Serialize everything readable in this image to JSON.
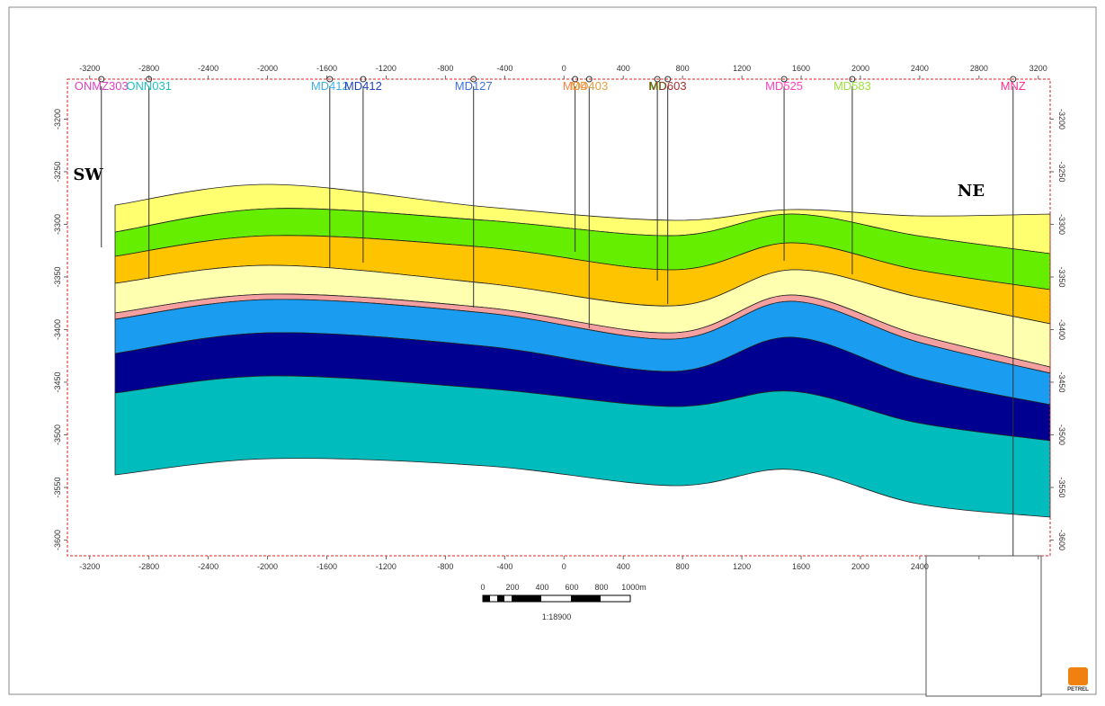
{
  "chart_data": {
    "type": "section",
    "xlim": [
      -3350,
      3280
    ],
    "xticks": [
      -3200,
      -2800,
      -2400,
      -2000,
      -1600,
      -1200,
      -800,
      -400,
      0,
      400,
      800,
      1200,
      1600,
      2000,
      2400,
      2800,
      3200
    ],
    "ylim": [
      -3615,
      -3162
    ],
    "yticks": [
      -3600,
      -3550,
      -3500,
      -3450,
      -3400,
      -3350,
      -3300,
      -3250,
      -3200
    ],
    "wells": [
      {
        "name": "ONMZ303",
        "x": -3121,
        "color": "#e040c0"
      },
      {
        "name": "ONN031",
        "x": -2800,
        "color": "#20c0c0"
      },
      {
        "name": "MD412",
        "x": -1580,
        "color": "#40b0e0"
      },
      {
        "name": "MD412",
        "x": -1355,
        "color": "#2040c0"
      },
      {
        "name": "MD127",
        "x": -610,
        "color": "#4070e0"
      },
      {
        "name": "MD4",
        "x": 75,
        "color": "#ff8040"
      },
      {
        "name": "MD403",
        "x": 170,
        "color": "#e0a040"
      },
      {
        "name": "MD",
        "x": 630,
        "color": "#40e020"
      },
      {
        "name": "MD603",
        "x": 700,
        "color": "#a03030"
      },
      {
        "name": "MD525",
        "x": 1485,
        "color": "#ff40c0"
      },
      {
        "name": "MD583",
        "x": 1945,
        "color": "#a0e040"
      },
      {
        "name": "MNZ",
        "x": 3030,
        "color": "#ff3090"
      }
    ],
    "annotations": [
      "SW",
      "NE"
    ],
    "scale_bar": {
      "labels": [
        "0",
        "200",
        "400",
        "600",
        "800",
        "1000m"
      ],
      "ratio": "1:18900"
    },
    "logo": "PETREL"
  }
}
